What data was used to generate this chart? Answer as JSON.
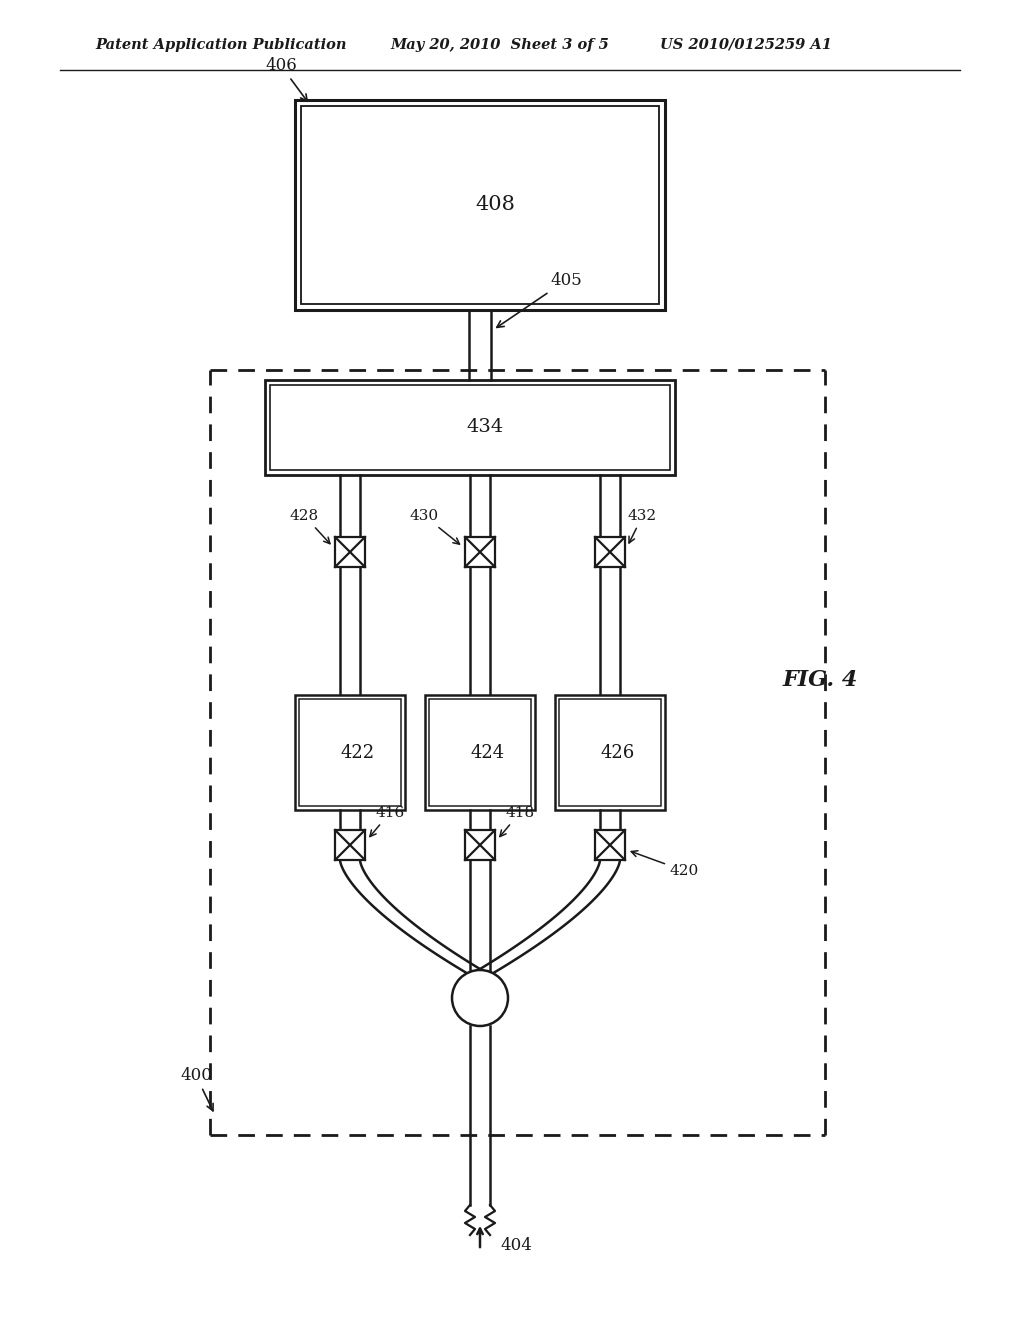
{
  "title_left": "Patent Application Publication",
  "title_mid": "May 20, 2010  Sheet 3 of 5",
  "title_right": "US 2010/0125259 A1",
  "fig_label": "FIG. 4",
  "bg_color": "#ffffff",
  "line_color": "#1a1a1a",
  "label_406": "406",
  "label_408": "408",
  "label_405": "405",
  "label_434": "434",
  "label_428": "428",
  "label_430": "430",
  "label_432": "432",
  "label_422": "422",
  "label_424": "424",
  "label_426": "426",
  "label_416": "416",
  "label_418": "418",
  "label_420": "420",
  "label_400": "400",
  "label_404": "404"
}
